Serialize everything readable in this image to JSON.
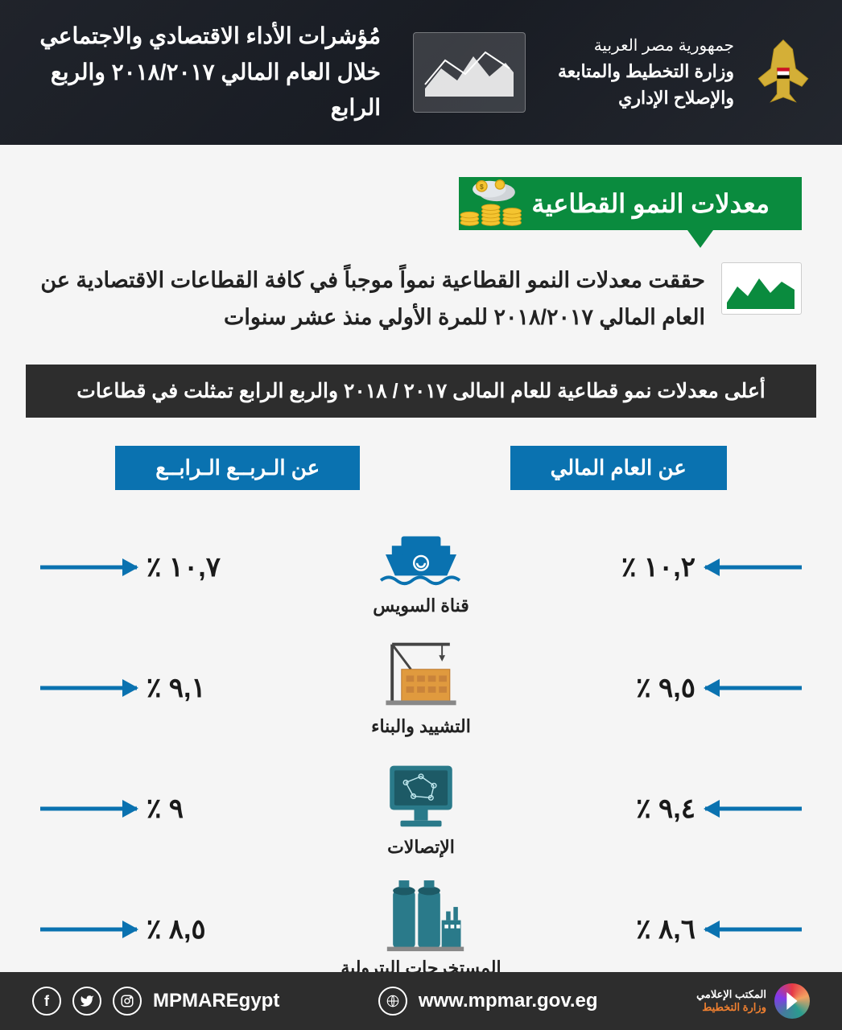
{
  "colors": {
    "primary_green": "#0a8b3e",
    "primary_blue": "#0a72b0",
    "dark_banner": "#2d2d2d",
    "text_dark": "#1a1a1a",
    "page_bg": "#f5f5f5",
    "white": "#ffffff",
    "icon_teal": "#2a7a8a",
    "icon_orange": "#f4a261"
  },
  "header": {
    "ministry_line1": "جمهورية مصر العربية",
    "ministry_line2": "وزارة التخطيط والمتابعة",
    "ministry_line3": "والإصلاح الإداري",
    "title_line1": "مُؤشرات الأداء الاقتصادي والاجتماعي",
    "title_line2": "خلال  العام المالي ٢٠١٨/٢٠١٧ والربع الرابع"
  },
  "section": {
    "badge": "معدلات النمو القطاعية",
    "intro": "حققت معدلات النمو القطاعية نمواً موجباً في كافة القطاعات الاقتصادية عن العام المالي ٢٠١٨/٢٠١٧ للمرة الأولي منذ عشر سنوات",
    "sub_banner": "أعلى معدلات نمو قطاعية للعام المالى ٢٠١٧ / ٢٠١٨ والربع الرابع تمثلت في قطاعات"
  },
  "columns": {
    "fiscal_year": "عن العام المالي",
    "q4": "عن الـربــع الـرابــع"
  },
  "sectors": [
    {
      "name": "قناة السويس",
      "fiscal": "١٠,٢ ٪",
      "q4": "١٠,٧ ٪",
      "icon": "suez",
      "icon_color": "#0a72b0"
    },
    {
      "name": "التشييد والبناء",
      "fiscal": "٩,٥ ٪",
      "q4": "٩,١ ٪",
      "icon": "construction",
      "icon_color": "#e09a3e"
    },
    {
      "name": "الإتصالات",
      "fiscal": "٩,٤ ٪",
      "q4": "٩ ٪",
      "icon": "telecom",
      "icon_color": "#2a7a8a"
    },
    {
      "name": "المستخرجات البترولية",
      "fiscal": "٨,٦ ٪",
      "q4": "٨,٥ ٪",
      "icon": "petroleum",
      "icon_color": "#2a7a8a"
    }
  ],
  "footer": {
    "handle": "MPMAREgypt",
    "url": "www.mpmar.gov.eg",
    "logo_line1": "المكتب الإعلامي",
    "logo_line2": "وزارة التخطيط"
  }
}
